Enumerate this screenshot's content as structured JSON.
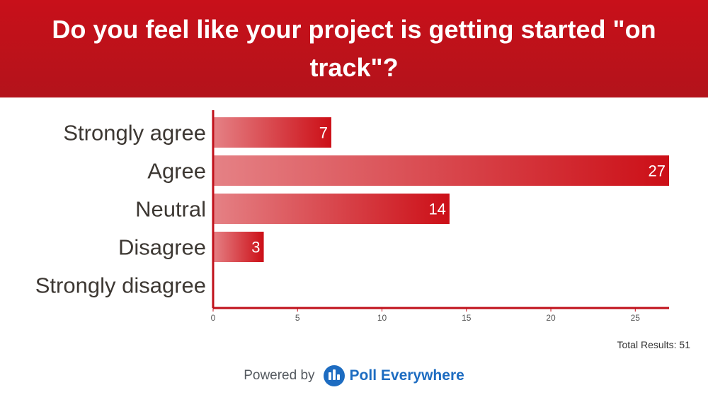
{
  "header": {
    "title": "Do you feel like your project is getting started \"on track\"?"
  },
  "chart_data": {
    "type": "bar",
    "orientation": "horizontal",
    "title": "Do you feel like your project is getting started \"on track\"?",
    "categories": [
      "Strongly agree",
      "Agree",
      "Neutral",
      "Disagree",
      "Strongly disagree"
    ],
    "values": [
      7,
      27,
      14,
      3,
      0
    ],
    "data_labels": [
      "7",
      "27",
      "14",
      "3",
      ""
    ],
    "xlim": [
      0,
      27
    ],
    "xticks": [
      0,
      5,
      10,
      15,
      20,
      25
    ],
    "xlabel": "",
    "ylabel": "",
    "grid": false,
    "legend": "none",
    "bar_color_start": "#e58185",
    "bar_color_end": "#cc0f17",
    "axis_color": "#c0101a"
  },
  "footer": {
    "total_results": "Total Results: 51",
    "powered_by": "Powered by",
    "brand_name": "Poll Everywhere",
    "brand_icon": "poll-everywhere-logo-icon",
    "brand_color": "#1d6cc1"
  }
}
